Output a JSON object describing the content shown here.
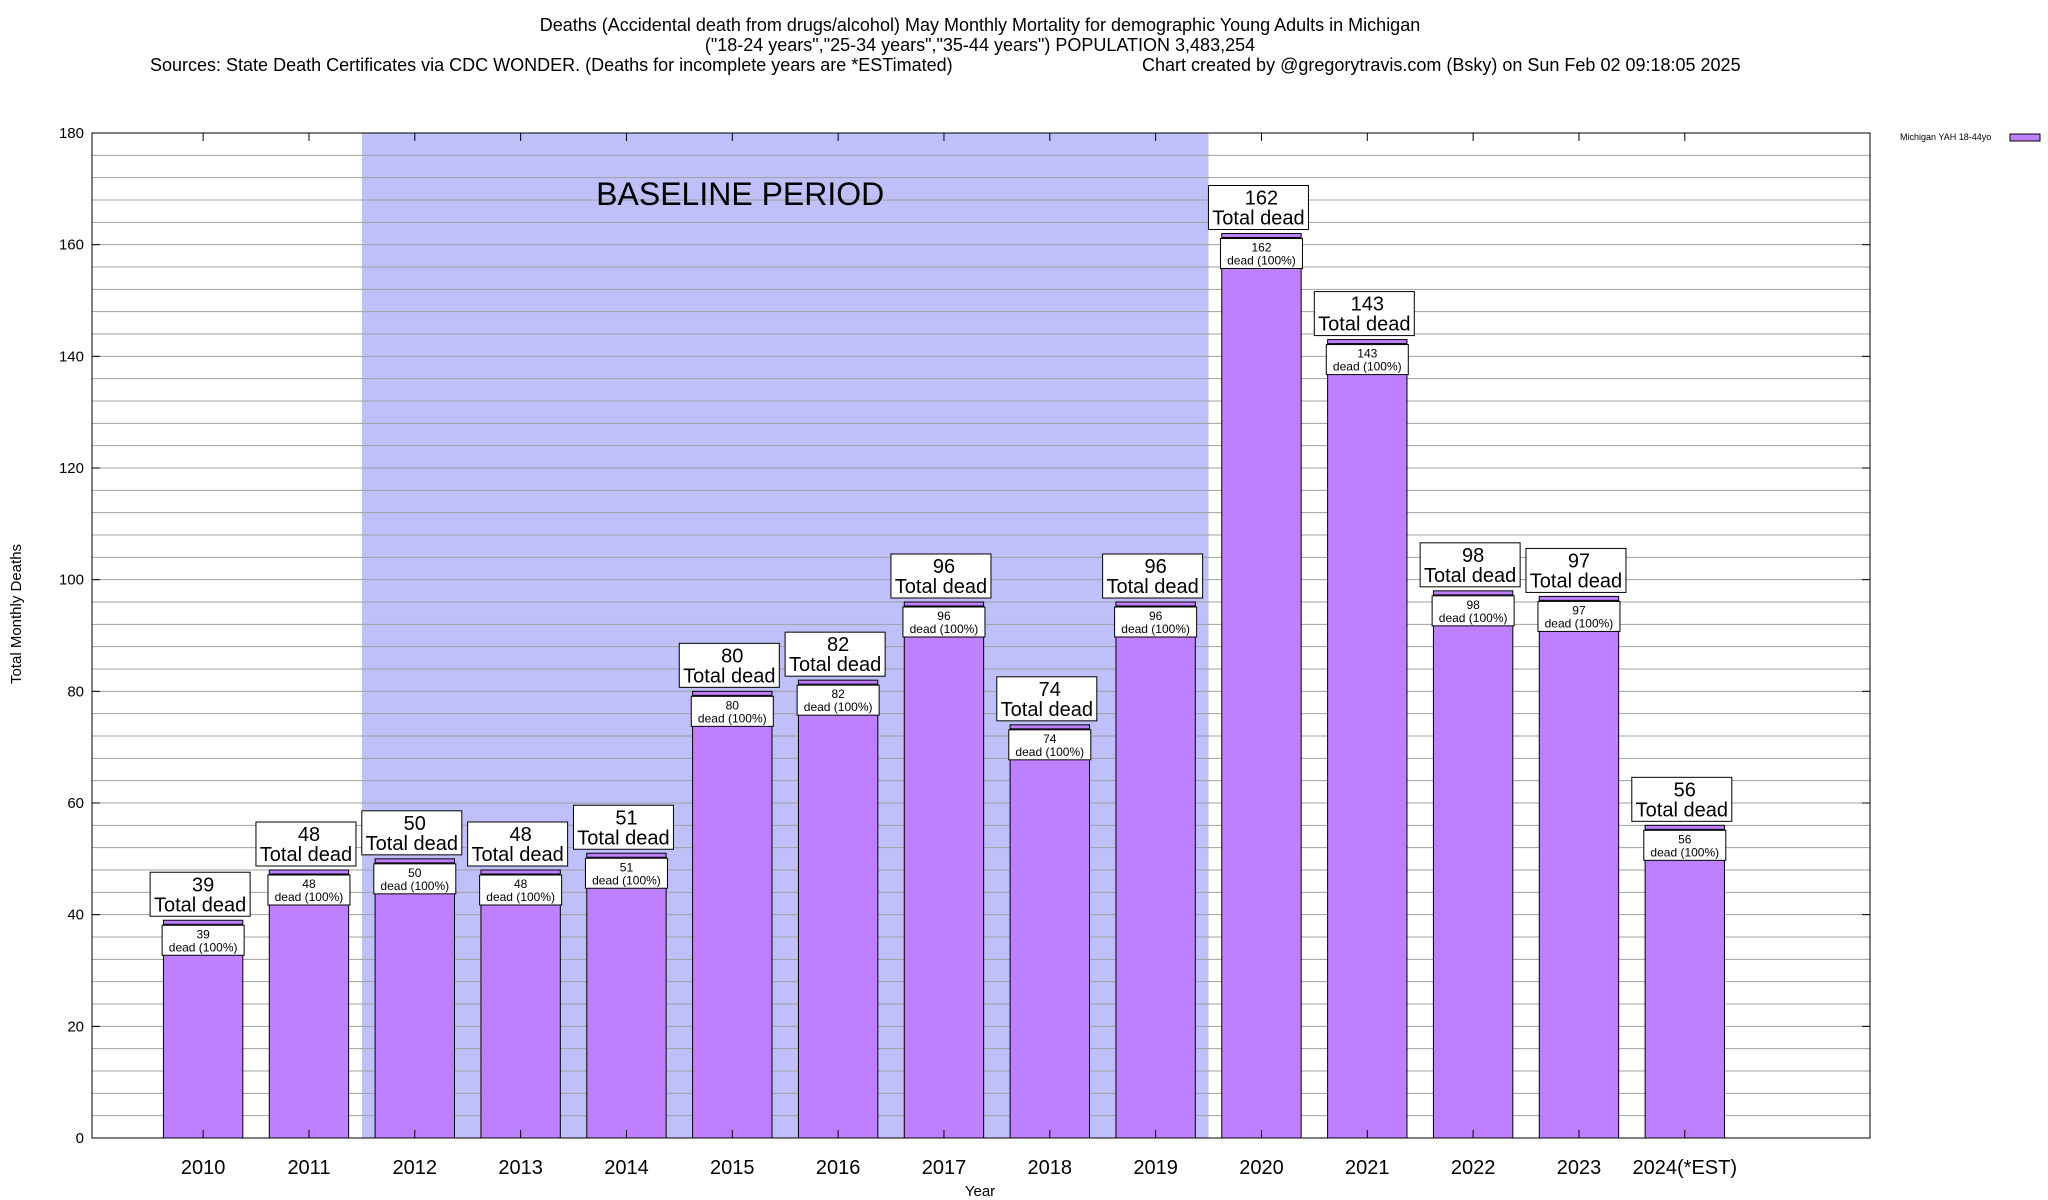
{
  "title": {
    "line1": "Deaths (Accidental death from drugs/alcohol) May Monthly Mortality for demographic Young Adults in Michigan",
    "line2": "(\"18-24 years\",\"25-34 years\",\"35-44 years\") POPULATION 3,483,254",
    "line3_left": "Sources: State Death Certificates via CDC WONDER. (Deaths for incomplete years are *ESTimated)",
    "line3_right": "Chart created by @gregorytravis.com (Bsky) on Sun Feb 02 09:18:05 2025"
  },
  "colors": {
    "bar": "#bf80ff",
    "baseline_shade": "#bfbffa",
    "grid": "#a0a0a0"
  },
  "chart_data": {
    "type": "bar",
    "title": "Deaths (Accidental death from drugs/alcohol) May Monthly Mortality for demographic Young Adults in Michigan",
    "xlabel": "Year",
    "ylabel": "Total Monthly Deaths",
    "ylim": [
      0,
      180
    ],
    "yticks": [
      0,
      20,
      40,
      60,
      80,
      100,
      120,
      140,
      160,
      180
    ],
    "grid": true,
    "legend_position": "top-right",
    "categories": [
      "2010",
      "2011",
      "2012",
      "2013",
      "2014",
      "2015",
      "2016",
      "2017",
      "2018",
      "2019",
      "2020",
      "2021",
      "2022",
      "2023",
      "2024(*EST)"
    ],
    "series": [
      {
        "name": "Michigan YAH 18-44yo",
        "values": [
          39,
          48,
          50,
          48,
          51,
          80,
          82,
          96,
          74,
          96,
          162,
          143,
          98,
          97,
          56
        ]
      }
    ],
    "baseline_period": {
      "label": "BASELINE PERIOD",
      "from": "2012",
      "to": "2019"
    },
    "annotation_text": {
      "total_suffix": "Total dead",
      "dead_suffix": "dead (100%)"
    }
  }
}
